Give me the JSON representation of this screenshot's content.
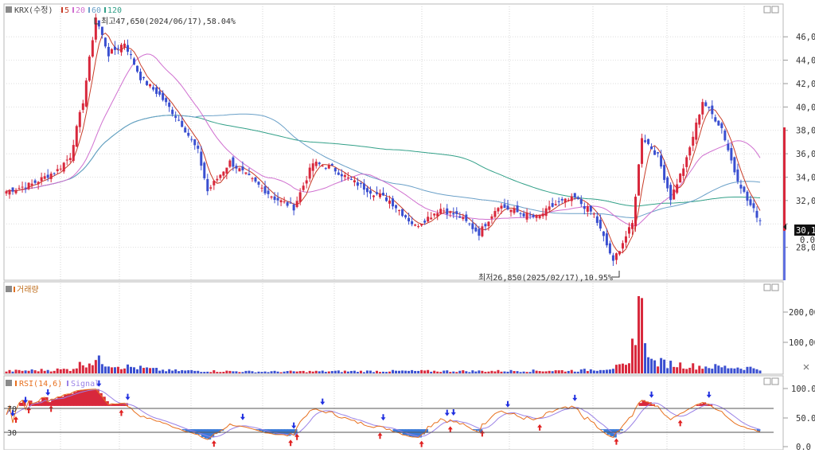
{
  "header": {
    "ticker": "KRX(수정)",
    "ma_labels": [
      "5",
      "20",
      "60",
      "120"
    ]
  },
  "price_panel": {
    "high_annotation": "최고47,650(2024/06/17),58.04%",
    "low_annotation": "최저26,850(2025/02/17),10.95%",
    "axis_labels": [
      "46,00",
      "44,00",
      "42,00",
      "40,00",
      "38,00",
      "36,00",
      "34,00",
      "32,00",
      "30,00",
      "28,00"
    ],
    "current_price_tag": "30,1",
    "change_tag": "0.00"
  },
  "volume_panel": {
    "title": "거래량",
    "axis_labels": [
      "200,00",
      "100,00"
    ]
  },
  "rsi_panel": {
    "title": "RSI(14,6)",
    "signal_label": "Signal",
    "level_high": "70",
    "level_low": "30",
    "axis_labels": [
      "100.0",
      "50.0",
      "0.0"
    ]
  },
  "colors": {
    "up": "#d8283c",
    "down": "#3a4fd0",
    "ma5": "#c83c28",
    "ma20": "#d070d0",
    "ma60": "#6aa0c8",
    "ma120": "#32a088",
    "rsi": "#e8701e",
    "signal": "#9b82e6"
  },
  "chart_data": {
    "type": "candlestick",
    "x_range": [
      0,
      236
    ],
    "y_range": [
      26000,
      47650
    ],
    "y_ticks": [
      28000,
      30000,
      32000,
      34000,
      36000,
      38000,
      40000,
      42000,
      44000,
      46000
    ],
    "annotations": [
      {
        "text": "최고47,650(2024/06/17),58.04%",
        "value": 47650,
        "date": "2024/06/17"
      },
      {
        "text": "최저26,850(2025/02/17),10.95%",
        "value": 26850,
        "date": "2025/02/17"
      }
    ],
    "price_anchors": [
      [
        0,
        32800
      ],
      [
        8,
        33400
      ],
      [
        16,
        34600
      ],
      [
        20,
        35800
      ],
      [
        24,
        40500
      ],
      [
        28,
        47650
      ],
      [
        32,
        44500
      ],
      [
        37,
        45500
      ],
      [
        42,
        42500
      ],
      [
        48,
        41000
      ],
      [
        55,
        38500
      ],
      [
        60,
        36200
      ],
      [
        63,
        32800
      ],
      [
        70,
        35300
      ],
      [
        78,
        33500
      ],
      [
        84,
        32200
      ],
      [
        90,
        31400
      ],
      [
        96,
        35200
      ],
      [
        102,
        34800
      ],
      [
        108,
        33700
      ],
      [
        114,
        32800
      ],
      [
        120,
        32000
      ],
      [
        128,
        29800
      ],
      [
        136,
        31300
      ],
      [
        142,
        30600
      ],
      [
        148,
        29200
      ],
      [
        154,
        31600
      ],
      [
        160,
        31000
      ],
      [
        166,
        30500
      ],
      [
        172,
        31700
      ],
      [
        178,
        32200
      ],
      [
        184,
        30800
      ],
      [
        190,
        26850
      ],
      [
        196,
        30000
      ],
      [
        199,
        37500
      ],
      [
        204,
        35800
      ],
      [
        208,
        32200
      ],
      [
        213,
        35500
      ],
      [
        218,
        40500
      ],
      [
        224,
        38200
      ],
      [
        228,
        34500
      ],
      [
        232,
        32000
      ],
      [
        236,
        30300
      ]
    ],
    "volume_anchors": [
      [
        0,
        8
      ],
      [
        20,
        14
      ],
      [
        24,
        35
      ],
      [
        28,
        45
      ],
      [
        36,
        25
      ],
      [
        50,
        10
      ],
      [
        80,
        6
      ],
      [
        120,
        8
      ],
      [
        150,
        8
      ],
      [
        180,
        10
      ],
      [
        195,
        25
      ],
      [
        198,
        252
      ],
      [
        202,
        40
      ],
      [
        215,
        25
      ],
      [
        236,
        18
      ]
    ],
    "volume_ticks": [
      100000,
      200000
    ],
    "volume_max": 270000,
    "rsi_levels": [
      70,
      30
    ],
    "rsi_ticks": [
      0,
      50,
      100
    ]
  }
}
